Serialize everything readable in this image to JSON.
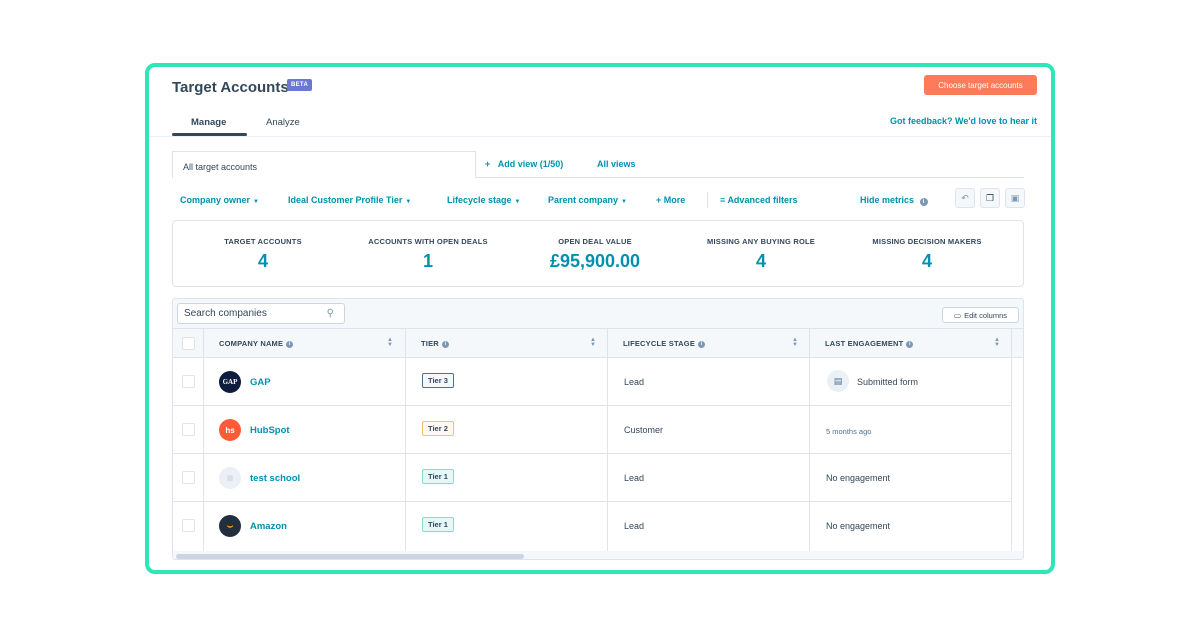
{
  "header": {
    "title": "Target Accounts",
    "badge": "BETA",
    "cta": "Choose target accounts",
    "feedback": "Got feedback? We'd love to hear it"
  },
  "tabs": [
    {
      "label": "Manage",
      "active": true
    },
    {
      "label": "Analyze",
      "active": false
    }
  ],
  "views": {
    "current": "All target accounts",
    "add_view": "Add view (1/50)",
    "all_views": "All views"
  },
  "filters": {
    "company_owner": "Company owner",
    "icp_tier": "Ideal Customer Profile Tier",
    "lifecycle": "Lifecycle stage",
    "parent": "Parent company",
    "more": "More",
    "advanced": "Advanced filters",
    "hide_metrics": "Hide metrics"
  },
  "metrics": [
    {
      "label": "TARGET ACCOUNTS",
      "value": "4"
    },
    {
      "label": "ACCOUNTS WITH OPEN DEALS",
      "value": "1"
    },
    {
      "label": "OPEN DEAL VALUE",
      "value": "£95,900.00"
    },
    {
      "label": "MISSING ANY BUYING ROLE",
      "value": "4"
    },
    {
      "label": "MISSING DECISION MAKERS",
      "value": "4"
    }
  ],
  "table": {
    "search_placeholder": "Search companies",
    "edit_columns": "Edit columns",
    "columns": [
      "COMPANY NAME",
      "TIER",
      "LIFECYCLE STAGE",
      "LAST ENGAGEMENT"
    ],
    "rows": [
      {
        "company": "GAP",
        "logo_text": "GAP",
        "logo_color": "#0e1c3d",
        "tier": "Tier 3",
        "lifecycle": "Lead",
        "engagement": "Submitted form"
      },
      {
        "company": "HubSpot",
        "logo_text": "hs",
        "logo_color": "#ff5c35",
        "tier": "Tier 2",
        "lifecycle": "Customer",
        "engagement": "5 months ago"
      },
      {
        "company": "test school",
        "logo_text": "",
        "logo_color": "#eaf0f6",
        "tier": "Tier 1",
        "lifecycle": "Lead",
        "engagement": "No engagement"
      },
      {
        "company": "Amazon",
        "logo_text": "a",
        "logo_color": "#232f3e",
        "tier": "Tier 1",
        "lifecycle": "Lead",
        "engagement": "No engagement"
      }
    ]
  },
  "colors": {
    "accent": "#0091ae",
    "frame": "#2ee6b6",
    "cta": "#ff7a59",
    "badge": "#6a78d1"
  }
}
